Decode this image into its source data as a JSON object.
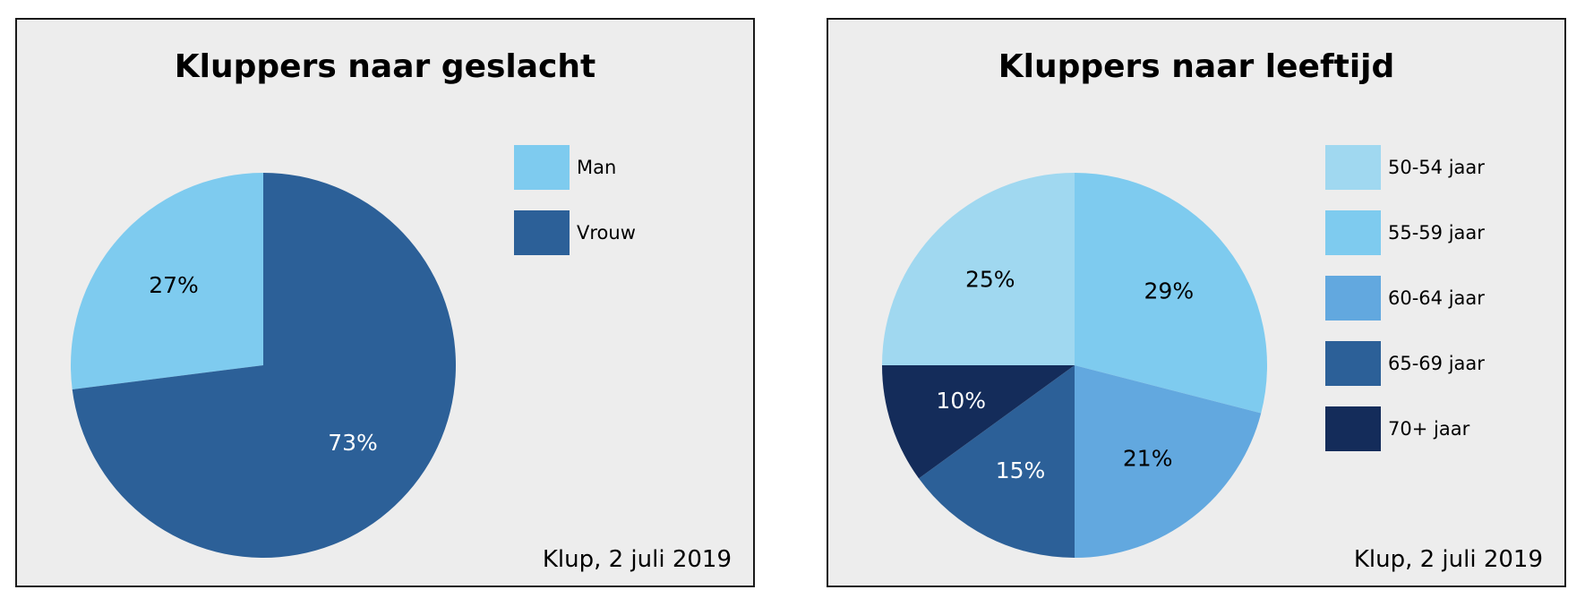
{
  "chart_data": [
    {
      "type": "pie",
      "title": "Kluppers naar geslacht",
      "source": "Klup, 2 juli 2019",
      "legend_position": "right",
      "slices": [
        {
          "label": "Man",
          "value": 27,
          "value_label": "27%",
          "color": "#7ecbef",
          "text_color": "#000000"
        },
        {
          "label": "Vrouw",
          "value": 73,
          "value_label": "73%",
          "color": "#2c6098",
          "text_color": "#ffffff"
        }
      ]
    },
    {
      "type": "pie",
      "title": "Kluppers naar leeftijd",
      "source": "Klup, 2 juli 2019",
      "legend_position": "right",
      "slices": [
        {
          "label": "50-54 jaar",
          "value": 25,
          "value_label": "25%",
          "color": "#a0d8f0",
          "text_color": "#000000"
        },
        {
          "label": "55-59 jaar",
          "value": 29,
          "value_label": "29%",
          "color": "#7ecbef",
          "text_color": "#000000"
        },
        {
          "label": "60-64 jaar",
          "value": 21,
          "value_label": "21%",
          "color": "#62a8df",
          "text_color": "#000000"
        },
        {
          "label": "65-69 jaar",
          "value": 15,
          "value_label": "15%",
          "color": "#2c6098",
          "text_color": "#ffffff"
        },
        {
          "label": "70+ jaar",
          "value": 10,
          "value_label": "10%",
          "color": "#142c5a",
          "text_color": "#ffffff"
        }
      ]
    }
  ]
}
